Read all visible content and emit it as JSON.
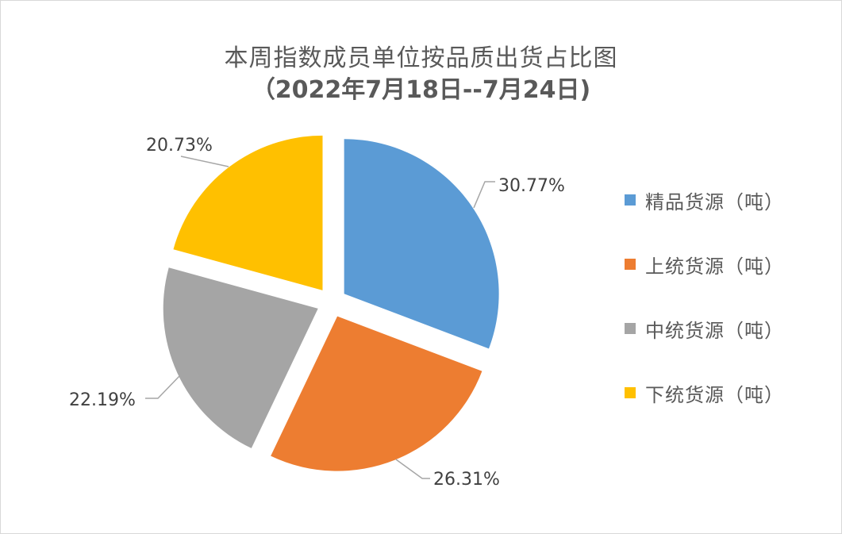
{
  "chart_data": {
    "type": "pie",
    "title": "本周指数成员单位按品质出货占比图",
    "subtitle": "（2022年7月18日--7月24日)",
    "categories": [
      "精品货源（吨）",
      "上统货源（吨）",
      "中统货源（吨）",
      "下统货源（吨）"
    ],
    "values": [
      30.77,
      26.31,
      22.19,
      20.73
    ],
    "value_labels": [
      "30.77%",
      "26.31%",
      "22.19%",
      "20.73%"
    ],
    "colors": [
      "#5b9bd5",
      "#ed7d31",
      "#a5a5a5",
      "#ffc000"
    ],
    "exploded": true,
    "start_angle": "12 o'clock, clockwise",
    "legend_position": "right"
  },
  "title": {
    "line1": "本周指数成员单位按品质出货占比图",
    "line2": "（2022年7月18日--7月24日)"
  },
  "legend": {
    "items": [
      {
        "label": "精品货源（吨）",
        "color": "#5b9bd5"
      },
      {
        "label": "上统货源（吨）",
        "color": "#ed7d31"
      },
      {
        "label": "中统货源（吨）",
        "color": "#a5a5a5"
      },
      {
        "label": "下统货源（吨）",
        "color": "#ffc000"
      }
    ]
  },
  "labels": {
    "jingpin": "30.77%",
    "shangtong": "26.31%",
    "zhongtong": "22.19%",
    "xiatong": "20.73%"
  }
}
